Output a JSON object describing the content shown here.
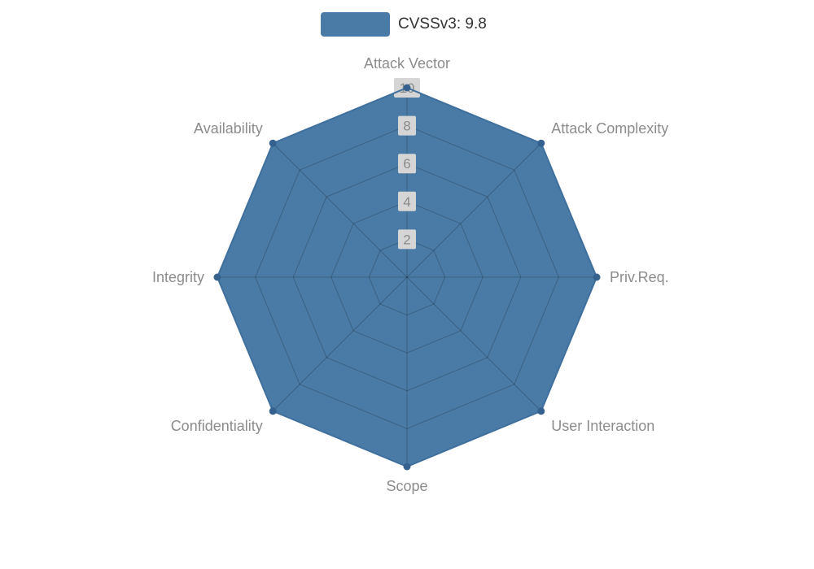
{
  "legend": {
    "label": "CVSSv3: 9.8"
  },
  "chart_data": {
    "type": "radar",
    "title": "CVSSv3: 9.8",
    "categories": [
      "Attack Vector",
      "Attack Complexity",
      "Priv.Req.",
      "User Interaction",
      "Scope",
      "Confidentiality",
      "Integrity",
      "Availability"
    ],
    "series": [
      {
        "name": "CVSSv3: 9.8",
        "values": [
          10,
          10,
          10,
          10,
          10,
          10,
          10,
          10
        ]
      }
    ],
    "ticks": [
      2,
      4,
      6,
      8,
      10
    ],
    "rlim": [
      0,
      10
    ],
    "grid": true,
    "legend_position": "top-center",
    "colors": {
      "fill": "#4a7ba6",
      "stroke": "#3f6f9d",
      "marker": "#34618d",
      "grid_line": "rgba(0,0,0,0.22)",
      "axis_label": "#8c8c8c",
      "tick_text": "#8a8a8a",
      "tick_bg": "#d5d5d5",
      "legend_text": "#333333"
    }
  }
}
